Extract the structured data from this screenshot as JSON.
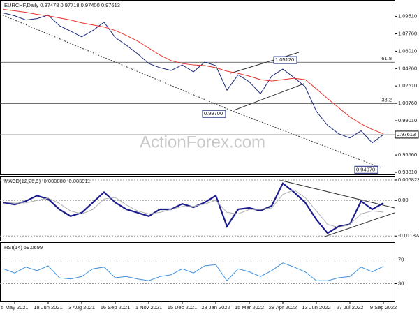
{
  "chart_data": [
    {
      "type": "line",
      "legend_text": "EURCHF,Daily  0.97478 0.97718 0.97400 0.97613",
      "watermark": "ActionForex.com",
      "categories": [
        null,
        "5 May 2021",
        null,
        null,
        "18 Jun 2021",
        null,
        null,
        "3 Aug 2021",
        null,
        null,
        "16 Sep 2021",
        null,
        null,
        "1 Nov 2021",
        null,
        null,
        "15 Dec 2021",
        null,
        null,
        "28 Jan 2022",
        null,
        null,
        "15 Mar 2022",
        null,
        null,
        "28 Apr 2022",
        null,
        null,
        "13 Jun 2022",
        null,
        null,
        "27 Jul 2022",
        null,
        null,
        "9 Sep 2022"
      ],
      "series": [
        {
          "name": "EURCHF",
          "color": "#1c2a7a",
          "values": [
            1.0986,
            1.0958,
            1.0916,
            1.093,
            1.0965,
            1.0859,
            1.0803,
            1.0746,
            1.081,
            1.0894,
            1.0739,
            1.0661,
            1.0576,
            1.0477,
            1.0435,
            1.0407,
            1.0463,
            1.0393,
            1.0491,
            1.0456,
            1.0209,
            1.0364,
            1.0293,
            1.0173,
            1.035,
            1.0421,
            1.0336,
            1.0244,
            0.9996,
            0.9855,
            0.977,
            0.9728,
            0.9799,
            0.9678,
            0.9761
          ]
        },
        {
          "name": "MA",
          "color": "#e8322b",
          "values": [
            1.1022,
            1.1008,
            1.0993,
            1.0972,
            1.0958,
            1.0937,
            1.0916,
            1.0887,
            1.0866,
            1.0845,
            1.081,
            1.076,
            1.0704,
            1.0633,
            1.0562,
            1.0506,
            1.0477,
            1.0463,
            1.0456,
            1.0435,
            1.04,
            1.0378,
            1.035,
            1.0315,
            1.0301,
            1.0315,
            1.0329,
            1.0315,
            1.0223,
            1.0124,
            1.0032,
            0.994,
            0.987,
            0.9813,
            0.977
          ]
        }
      ],
      "ylim": [
        0.936,
        1.111
      ],
      "yticks": [
        {
          "value": 1.0951,
          "label": "1.09510"
        },
        {
          "value": 1.0776,
          "label": "1.07760"
        },
        {
          "value": 1.0601,
          "label": "1.06010"
        },
        {
          "value": 1.0426,
          "label": "1.04260"
        },
        {
          "value": 1.0251,
          "label": "1.02510"
        },
        {
          "value": 1.0076,
          "label": "1.00760"
        },
        {
          "value": 0.9901,
          "label": "0.99010"
        },
        {
          "value": 0.9556,
          "label": "0.95560"
        },
        {
          "value": 0.9381,
          "label": "0.93810"
        }
      ],
      "levels": [
        {
          "value": 1.049,
          "label": "61.8"
        },
        {
          "value": 1.0074,
          "label": "38.2"
        }
      ],
      "last_price": {
        "value": 0.97613,
        "label": "0.97613"
      },
      "annotations": [
        {
          "value": 1.0512,
          "label": "1.05120"
        },
        {
          "value": 0.997,
          "label": "0.99700"
        },
        {
          "value": 0.9407,
          "label": "0.94070"
        }
      ]
    },
    {
      "type": "line",
      "legend_text": "MACD(12,26,9) -0.000880 -0.003911",
      "series": [
        {
          "name": "MACD",
          "color": "#1c1c8c",
          "width": 2.2,
          "values": [
            -0.00068,
            -0.00137,
            -0.00023,
            0.0016,
            0.00046,
            -0.00296,
            -0.00524,
            -0.0041,
            -0.00068,
            0.00274,
            -0.00068,
            -0.00296,
            -0.0041,
            -0.00524,
            -0.00296,
            -0.00296,
            -0.00114,
            -0.00228,
            -0.00068,
            0.0016,
            -0.00866,
            -0.00296,
            -0.00251,
            -0.00342,
            -0.00182,
            0.0057,
            0.00274,
            -0.00068,
            -0.00638,
            -0.01094,
            -0.00866,
            -0.00798,
            -0.00023,
            -0.00296,
            -0.00088
          ]
        },
        {
          "name": "Signal",
          "color": "#b0b0b0",
          "width": 1,
          "values": [
            -0.0005,
            -0.0009,
            -0.0008,
            0.0,
            0.0008,
            -0.001,
            -0.0035,
            -0.0045,
            -0.003,
            0.0005,
            0.001,
            -0.0015,
            -0.0035,
            -0.0045,
            -0.004,
            -0.003,
            -0.002,
            -0.002,
            -0.0012,
            0.0,
            -0.004,
            -0.0045,
            -0.003,
            -0.003,
            -0.0025,
            0.002,
            0.0035,
            0.001,
            -0.0035,
            -0.008,
            -0.009,
            -0.008,
            -0.0045,
            -0.0035,
            -0.003911
          ]
        }
      ],
      "ylim": [
        -0.01345,
        0.00798
      ],
      "yticks": [
        0.006823,
        {
          "value": 0,
          "label": "0.00"
        },
        -0.011874
      ]
    },
    {
      "type": "line",
      "legend_text": "RSI(14) 59.0699",
      "series": [
        {
          "name": "RSI",
          "color": "#3b8fde",
          "width": 1,
          "values": [
            55,
            48,
            58,
            52,
            60,
            40,
            38,
            42,
            55,
            58,
            40,
            42,
            38,
            35,
            42,
            45,
            55,
            48,
            60,
            62,
            35,
            55,
            50,
            42,
            52,
            65,
            58,
            50,
            35,
            35,
            40,
            42,
            58,
            50,
            59.0699
          ]
        }
      ],
      "ylim": [
        0,
        100
      ],
      "yticks": [
        70,
        30
      ]
    }
  ]
}
